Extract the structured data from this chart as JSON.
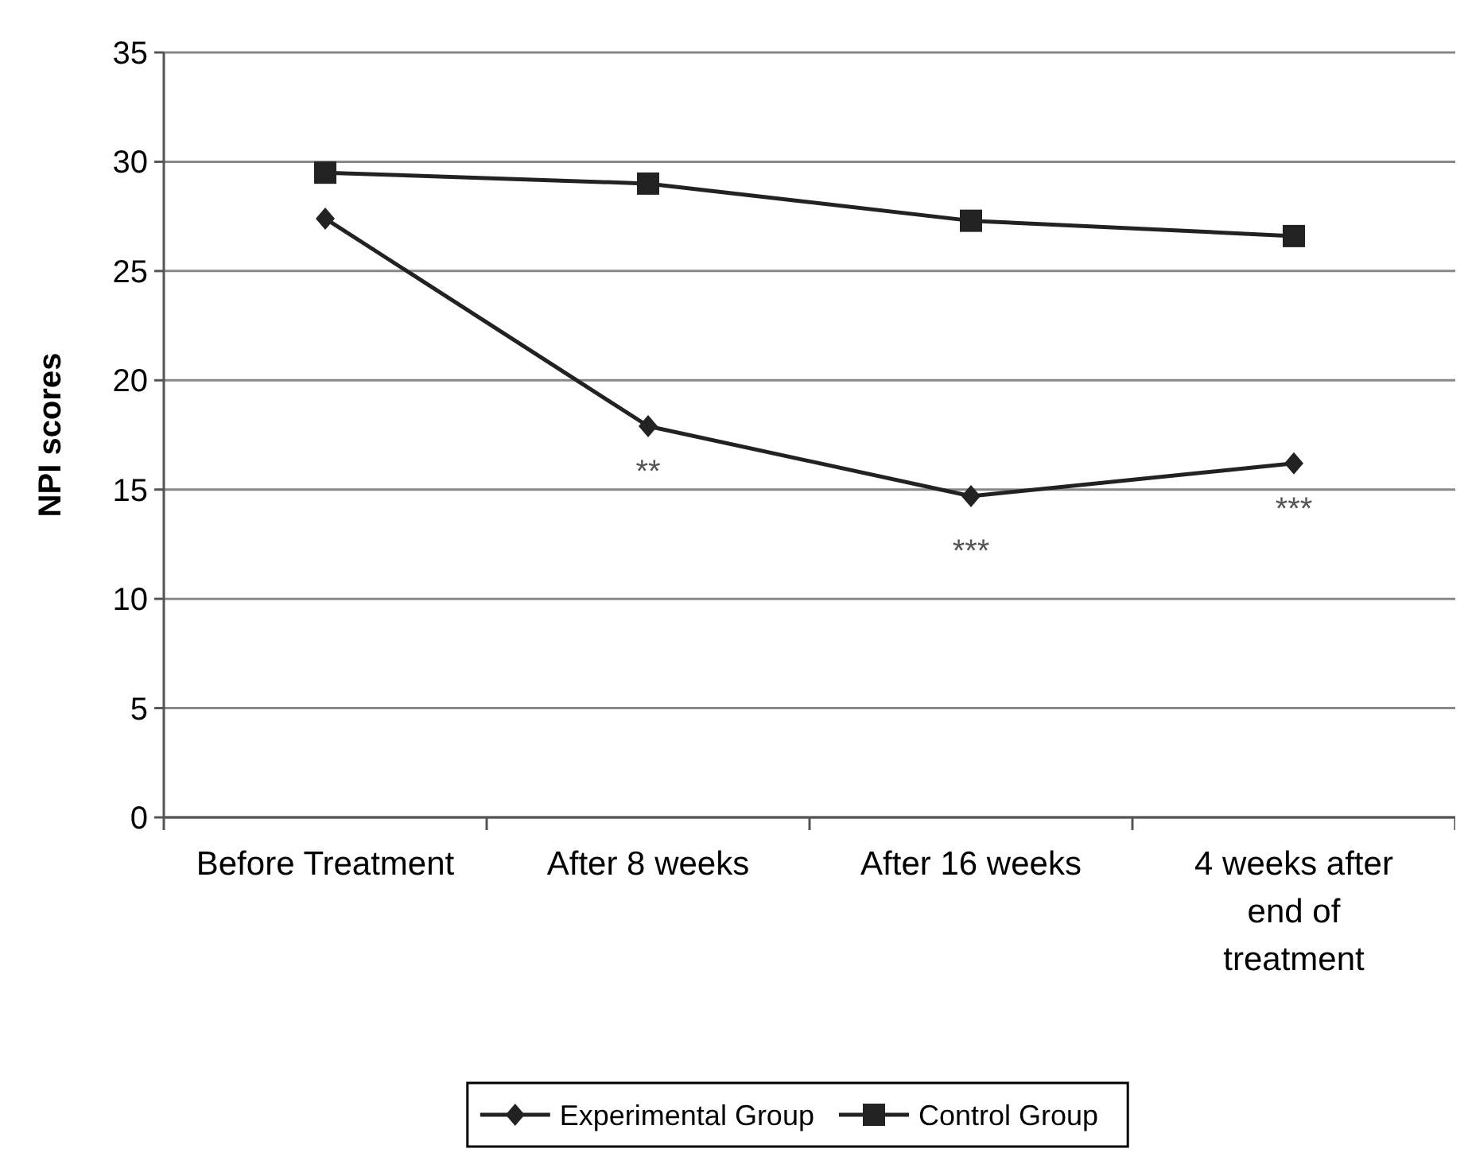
{
  "chart_data": {
    "type": "line",
    "ylabel": "NPI scores",
    "categories": [
      "Before Treatment",
      "After 8 weeks",
      "After 16 weeks",
      "4 weeks after end of treatment"
    ],
    "series": [
      {
        "name": "Experimental Group",
        "color": "#222222",
        "marker": "diamond",
        "values": [
          27.4,
          17.9,
          14.7,
          16.2
        ]
      },
      {
        "name": "Control Group",
        "color": "#222222",
        "marker": "square",
        "values": [
          29.5,
          29.0,
          27.3,
          26.6
        ]
      }
    ],
    "ylim": [
      0,
      35
    ],
    "yticks": [
      0,
      5,
      10,
      15,
      20,
      25,
      30,
      35
    ],
    "grid": "y",
    "legend": "bottom",
    "annotations": [
      {
        "text": "**",
        "x": "After 8 weeks",
        "y": 17.9
      },
      {
        "text": "***",
        "x": "After 16 weeks",
        "y": 14.7
      },
      {
        "text": "***",
        "x": "4 weeks after end of treatment",
        "y": 16.2
      }
    ]
  }
}
